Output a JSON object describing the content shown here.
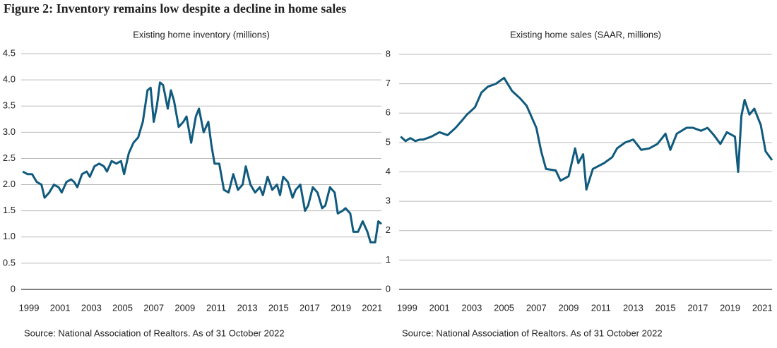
{
  "figure_title": "Figure 2: Inventory remains low despite a decline in home sales",
  "chart_data": [
    {
      "type": "line",
      "title": "Existing home inventory (millions)",
      "source": "Source: National Association of Realtors. As of 31 October 2022",
      "color": "#0f5a7d",
      "grid": true,
      "xlim": [
        1998.5,
        2021.6
      ],
      "xticks": [
        1999,
        2001,
        2003,
        2005,
        2007,
        2009,
        2011,
        2013,
        2015,
        2017,
        2019,
        2021
      ],
      "ylim": [
        0,
        4.5
      ],
      "yticks": [
        0,
        0.5,
        {
          "value": 1,
          "label": "1.0"
        },
        1.5,
        {
          "value": 2,
          "label": "2.0"
        },
        2.5,
        {
          "value": 3,
          "label": "3.0"
        },
        3.5,
        {
          "value": 4,
          "label": "4.0"
        },
        4.5
      ],
      "x": [
        1998.6,
        1998.9,
        1999.2,
        1999.5,
        1999.8,
        2000.0,
        2000.3,
        2000.6,
        2000.9,
        2001.1,
        2001.4,
        2001.7,
        2001.9,
        2002.1,
        2002.4,
        2002.7,
        2002.9,
        2003.2,
        2003.5,
        2003.8,
        2004.0,
        2004.3,
        2004.6,
        2004.9,
        2005.1,
        2005.4,
        2005.7,
        2006.0,
        2006.3,
        2006.6,
        2006.8,
        2007.0,
        2007.2,
        2007.4,
        2007.6,
        2007.9,
        2008.1,
        2008.3,
        2008.6,
        2008.9,
        2009.1,
        2009.4,
        2009.7,
        2009.9,
        2010.2,
        2010.5,
        2010.7,
        2010.9,
        2011.2,
        2011.5,
        2011.8,
        2012.1,
        2012.4,
        2012.7,
        2012.9,
        2013.2,
        2013.5,
        2013.8,
        2014.0,
        2014.3,
        2014.6,
        2014.9,
        2015.1,
        2015.3,
        2015.6,
        2015.9,
        2016.1,
        2016.4,
        2016.7,
        2016.9,
        2017.2,
        2017.5,
        2017.8,
        2018.0,
        2018.3,
        2018.6,
        2018.8,
        2019.1,
        2019.3,
        2019.6,
        2019.8,
        2020.1,
        2020.4,
        2020.7,
        2020.9,
        2021.2,
        2021.4,
        2021.6
      ],
      "values": [
        2.25,
        2.2,
        2.2,
        2.05,
        2.0,
        1.75,
        1.85,
        2.0,
        1.95,
        1.85,
        2.05,
        2.1,
        2.05,
        1.95,
        2.2,
        2.25,
        2.15,
        2.35,
        2.4,
        2.35,
        2.25,
        2.45,
        2.4,
        2.45,
        2.2,
        2.6,
        2.8,
        2.9,
        3.2,
        3.8,
        3.85,
        3.2,
        3.5,
        3.95,
        3.9,
        3.45,
        3.8,
        3.6,
        3.1,
        3.2,
        3.3,
        2.8,
        3.3,
        3.45,
        3.0,
        3.2,
        2.75,
        2.4,
        2.4,
        1.9,
        1.85,
        2.2,
        1.9,
        2.0,
        2.35,
        2.0,
        1.85,
        1.95,
        1.8,
        2.15,
        1.9,
        2.0,
        1.8,
        2.15,
        2.05,
        1.75,
        1.9,
        2.0,
        1.5,
        1.6,
        1.95,
        1.85,
        1.55,
        1.6,
        1.95,
        1.85,
        1.45,
        1.5,
        1.55,
        1.45,
        1.1,
        1.1,
        1.3,
        1.1,
        0.9,
        0.9,
        1.3,
        1.25
      ]
    },
    {
      "type": "line",
      "title": "Existing home sales (SAAR, millions)",
      "source": "Source: National Association of Realtors. As of 31 October 2022",
      "color": "#0f5a7d",
      "grid": true,
      "xlim": [
        1998.5,
        2021.6
      ],
      "xticks": [
        1999,
        2001,
        2003,
        2005,
        2007,
        2009,
        2011,
        2013,
        2015,
        2017,
        2019,
        2021
      ],
      "ylim": [
        0,
        8
      ],
      "yticks": [
        0,
        1,
        2,
        3,
        4,
        5,
        6,
        7,
        8
      ],
      "x": [
        1998.6,
        1998.9,
        1999.2,
        1999.5,
        1999.8,
        2000.0,
        2000.5,
        2001.0,
        2001.5,
        2002.0,
        2002.4,
        2002.7,
        2003.2,
        2003.6,
        2004.0,
        2004.5,
        2005.0,
        2005.5,
        2006.0,
        2006.4,
        2007.0,
        2007.3,
        2007.6,
        2008.2,
        2008.5,
        2009.0,
        2009.4,
        2009.6,
        2009.9,
        2010.1,
        2010.5,
        2011.2,
        2011.7,
        2012.0,
        2012.5,
        2013.0,
        2013.5,
        2014.0,
        2014.5,
        2015.0,
        2015.3,
        2015.7,
        2016.3,
        2016.7,
        2017.2,
        2017.6,
        2018.0,
        2018.4,
        2018.8,
        2019.3,
        2019.5,
        2019.7,
        2019.9,
        2020.2,
        2020.5,
        2020.9,
        2021.2,
        2021.6
      ],
      "values": [
        5.2,
        5.05,
        5.15,
        5.05,
        5.1,
        5.1,
        5.2,
        5.35,
        5.25,
        5.5,
        5.75,
        5.95,
        6.2,
        6.7,
        6.9,
        7.0,
        7.2,
        6.75,
        6.5,
        6.25,
        5.5,
        4.7,
        4.1,
        4.05,
        3.7,
        3.85,
        4.8,
        4.3,
        4.6,
        3.4,
        4.1,
        4.3,
        4.5,
        4.8,
        5.0,
        5.1,
        4.75,
        4.8,
        4.95,
        5.3,
        4.75,
        5.3,
        5.5,
        5.5,
        5.4,
        5.5,
        5.25,
        4.95,
        5.35,
        5.2,
        4.0,
        5.9,
        6.45,
        5.95,
        6.15,
        5.6,
        4.7,
        4.4
      ]
    }
  ]
}
